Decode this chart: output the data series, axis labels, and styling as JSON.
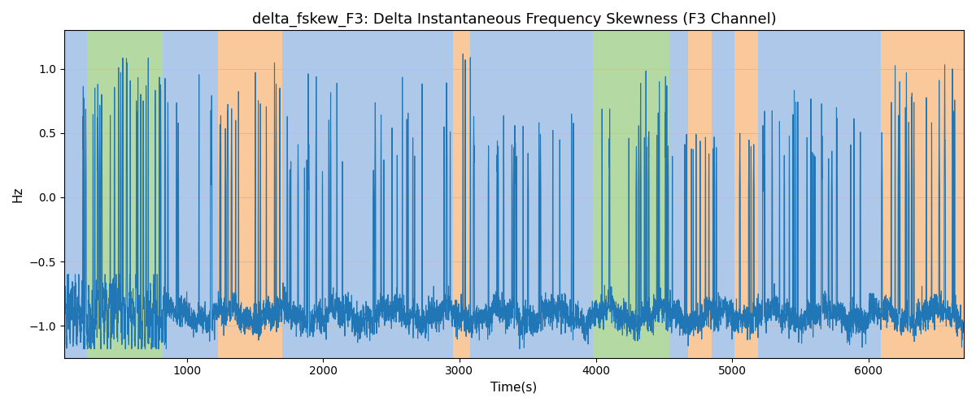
{
  "title": "delta_fskew_F3: Delta Instantaneous Frequency Skewness (F3 Channel)",
  "xlabel": "Time(s)",
  "ylabel": "Hz",
  "xlim": [
    100,
    6700
  ],
  "ylim": [
    -1.25,
    1.3
  ],
  "bg_bands": [
    [
      100,
      270,
      "#adc8e8"
    ],
    [
      270,
      820,
      "#b5d9a3"
    ],
    [
      820,
      1230,
      "#adc8e8"
    ],
    [
      1230,
      1700,
      "#f9c89b"
    ],
    [
      1700,
      2950,
      "#adc8e8"
    ],
    [
      2950,
      3080,
      "#f9c89b"
    ],
    [
      3080,
      3870,
      "#adc8e8"
    ],
    [
      3870,
      3980,
      "#adc8e8"
    ],
    [
      3980,
      4540,
      "#b5d9a3"
    ],
    [
      4540,
      4680,
      "#adc8e8"
    ],
    [
      4680,
      4850,
      "#f9c89b"
    ],
    [
      4850,
      5020,
      "#adc8e8"
    ],
    [
      5020,
      5190,
      "#f9c89b"
    ],
    [
      5190,
      5860,
      "#adc8e8"
    ],
    [
      5860,
      6090,
      "#adc8e8"
    ],
    [
      6090,
      6700,
      "#f9c89b"
    ]
  ],
  "line_color": "#2176b5",
  "line_width": 0.8,
  "grid_color": "#c0c0c0",
  "title_fontsize": 13,
  "xticks": [
    1000,
    2000,
    3000,
    4000,
    5000,
    6000
  ],
  "yticks": [
    -1.0,
    -0.5,
    0.0,
    0.5,
    1.0
  ]
}
